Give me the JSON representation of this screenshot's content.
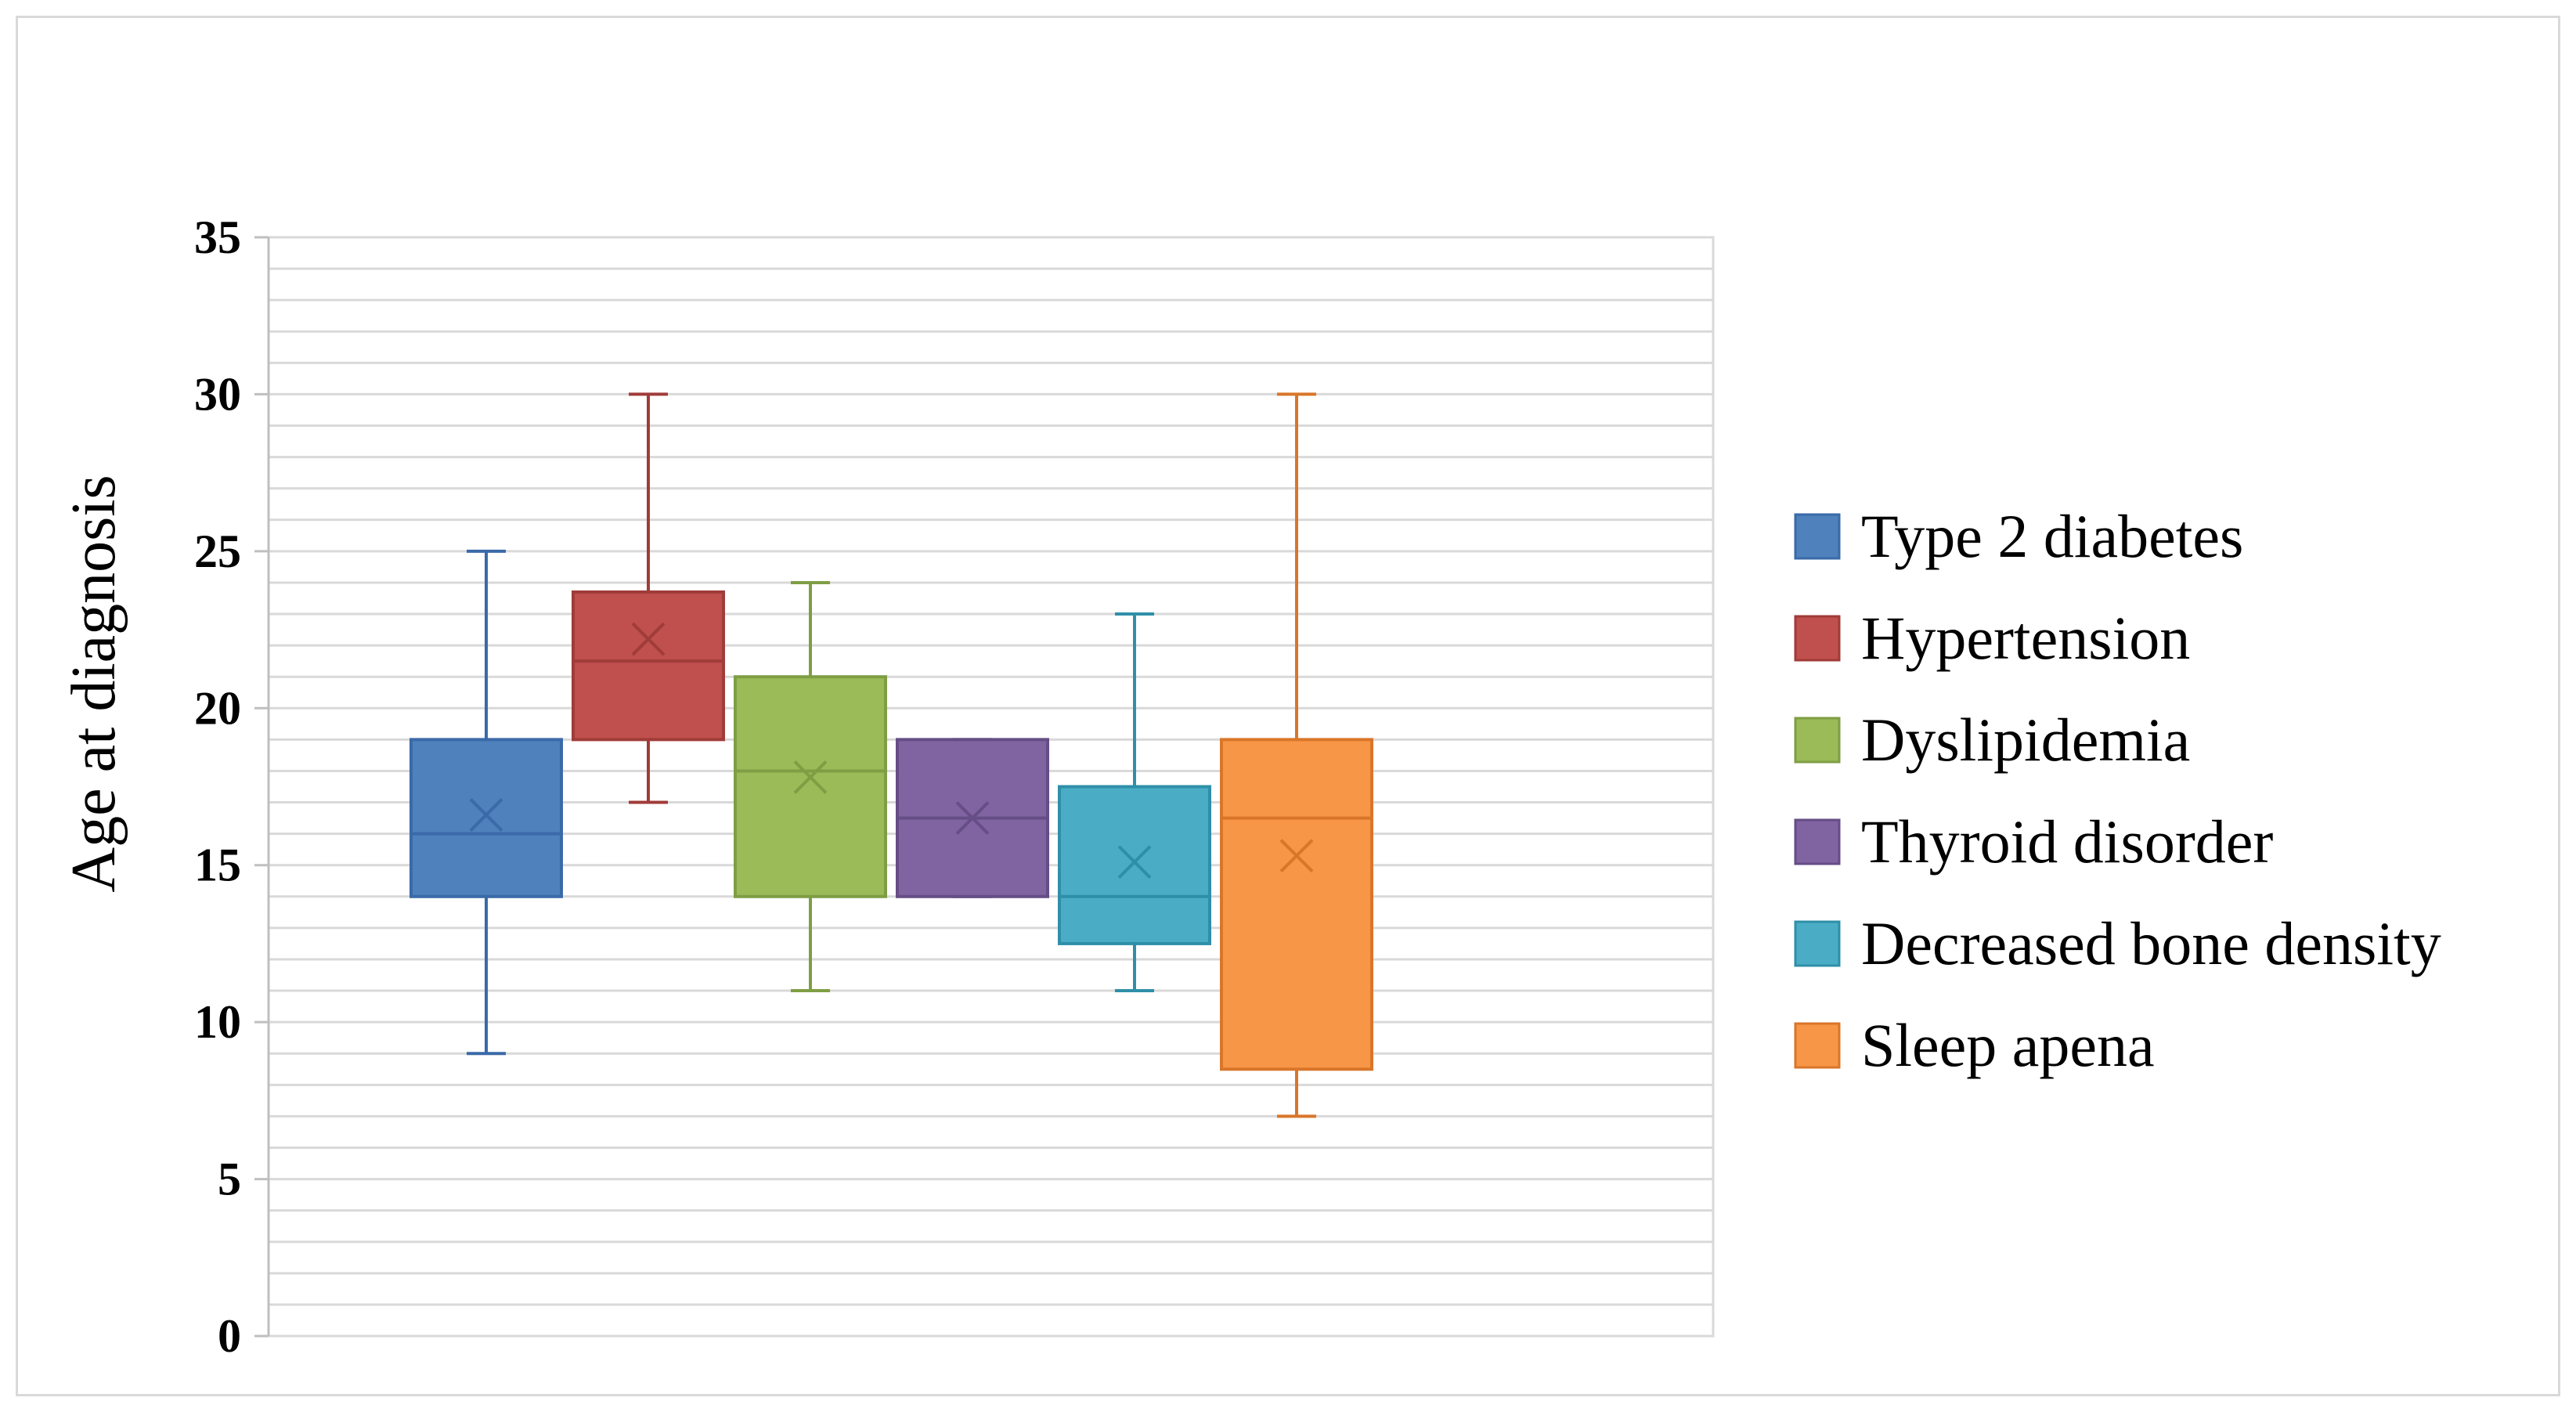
{
  "chart_data": {
    "type": "boxplot",
    "title": "",
    "xlabel": "",
    "ylabel": "Age at diagnosis",
    "ylim": [
      0,
      35
    ],
    "ytick_step": 5,
    "yticks": [
      "0",
      "5",
      "10",
      "15",
      "20",
      "25",
      "30",
      "35"
    ],
    "minor_grid_step": 1,
    "grid": true,
    "legend_position": "right",
    "series": [
      {
        "name": "Type 2 diabetes",
        "color": "#4f81bd",
        "border": "#3a6aa8",
        "min": 9,
        "q1": 14,
        "median": 16,
        "q3": 19,
        "max": 25,
        "mean": 16.6
      },
      {
        "name": "Hypertension",
        "color": "#c0504d",
        "border": "#a03c39",
        "min": 17,
        "q1": 19,
        "median": 21.5,
        "q3": 23.7,
        "max": 30,
        "mean": 22.2
      },
      {
        "name": "Dyslipidemia",
        "color": "#9bbb59",
        "border": "#7f9e44",
        "min": 11,
        "q1": 14,
        "median": 18,
        "q3": 21,
        "max": 24,
        "mean": 17.8
      },
      {
        "name": "Thyroid disorder",
        "color": "#8064a2",
        "border": "#654d85",
        "min": 14,
        "q1": 14,
        "median": 16.5,
        "q3": 19,
        "max": 19,
        "mean": 16.5
      },
      {
        "name": "Decreased bone density",
        "color": "#4bacc6",
        "border": "#2f8fa8",
        "min": 11,
        "q1": 12.5,
        "median": 14,
        "q3": 17.5,
        "max": 23,
        "mean": 15.1
      },
      {
        "name": "Sleep apena",
        "color": "#f79646",
        "border": "#d9762a",
        "min": 7,
        "q1": 8.5,
        "median": 16.5,
        "q3": 19,
        "max": 30,
        "mean": 15.3
      }
    ]
  }
}
